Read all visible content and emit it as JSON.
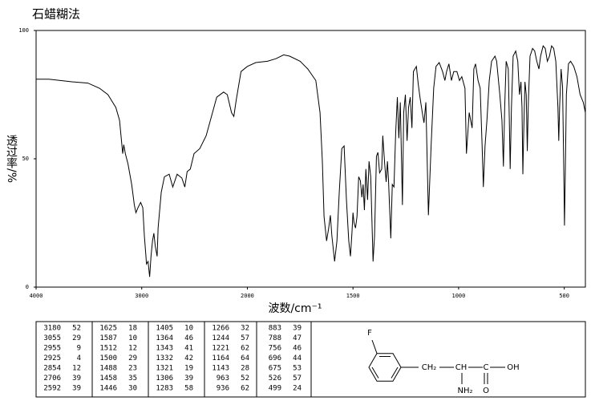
{
  "chart_data": {
    "type": "line",
    "title": "石蜡糊法",
    "x_label": "波数/cm⁻¹",
    "y_label": "透过率/%",
    "xlim": [
      4000,
      400
    ],
    "x_scale_break": 2000,
    "xticks": [
      4000,
      3000,
      2000,
      1500,
      1000,
      500
    ],
    "ylim": [
      0,
      100
    ],
    "yticks": [
      0,
      50,
      100
    ],
    "color": "#000000",
    "x": [
      4000,
      3880,
      3660,
      3510,
      3400,
      3320,
      3245,
      3210,
      3180,
      3170,
      3155,
      3130,
      3095,
      3070,
      3055,
      3035,
      3010,
      2990,
      2975,
      2960,
      2955,
      2940,
      2925,
      2912,
      2898,
      2885,
      2872,
      2854,
      2845,
      2815,
      2785,
      2740,
      2706,
      2665,
      2620,
      2592,
      2570,
      2540,
      2505,
      2450,
      2390,
      2340,
      2290,
      2225,
      2190,
      2150,
      2128,
      2105,
      2060,
      2000,
      1960,
      1905,
      1865,
      1828,
      1800,
      1750,
      1714,
      1676,
      1656,
      1645,
      1637,
      1625,
      1615,
      1607,
      1600,
      1587,
      1576,
      1565,
      1553,
      1542,
      1531,
      1520,
      1512,
      1505,
      1500,
      1495,
      1488,
      1481,
      1473,
      1465,
      1458,
      1452,
      1446,
      1439,
      1431,
      1424,
      1416,
      1405,
      1398,
      1389,
      1382,
      1374,
      1364,
      1359,
      1350,
      1343,
      1337,
      1332,
      1321,
      1314,
      1306,
      1298,
      1290,
      1283,
      1276,
      1266,
      1260,
      1252,
      1244,
      1237,
      1229,
      1221,
      1214,
      1200,
      1191,
      1183,
      1172,
      1164,
      1155,
      1143,
      1130,
      1118,
      1107,
      1092,
      1076,
      1065,
      1057,
      1046,
      1034,
      1023,
      1008,
      996,
      985,
      970,
      963,
      950,
      936,
      928,
      920,
      908,
      898,
      889,
      883,
      875,
      866,
      855,
      844,
      828,
      820,
      805,
      795,
      788,
      782,
      775,
      765,
      760,
      756,
      750,
      742,
      730,
      720,
      712,
      705,
      700,
      696,
      692,
      686,
      680,
      675,
      670,
      662,
      650,
      640,
      630,
      620,
      612,
      600,
      590,
      580,
      570,
      560,
      550,
      540,
      530,
      526,
      522,
      515,
      508,
      503,
      499,
      495,
      490,
      480,
      470,
      455,
      440,
      425,
      410,
      400
    ],
    "values": [
      81,
      81,
      80,
      79.5,
      77.5,
      75,
      70,
      65,
      52,
      55.5,
      52,
      48,
      40,
      32,
      29,
      31,
      33,
      31,
      20,
      12,
      9,
      10,
      4,
      12,
      18,
      21,
      16,
      12,
      23,
      37,
      43,
      44,
      39,
      44,
      42.5,
      39,
      45,
      46,
      52,
      54,
      59,
      66.5,
      74,
      76,
      75,
      68,
      66.5,
      73,
      84,
      86,
      87.5,
      88,
      89,
      90.5,
      90,
      88,
      85,
      80.5,
      68,
      49,
      27.5,
      18,
      23,
      28,
      20,
      10,
      18,
      37,
      54,
      55,
      34,
      18,
      12,
      21,
      29,
      25,
      23,
      27.5,
      43,
      41.5,
      35,
      40,
      30,
      46,
      34,
      49,
      43,
      10,
      20,
      51,
      52.5,
      44.5,
      46,
      59,
      48,
      41,
      49,
      42,
      19,
      40,
      39,
      60,
      74,
      58,
      72,
      32,
      68,
      75,
      57,
      70,
      74,
      62,
      84,
      86,
      79,
      74,
      68,
      64,
      72,
      28,
      55.5,
      77.5,
      86,
      87.5,
      84,
      80.5,
      84,
      87,
      80.5,
      84,
      84,
      80.5,
      82,
      77.5,
      52,
      68,
      62,
      85,
      87,
      80.5,
      77.5,
      55.5,
      39,
      55,
      65,
      80.5,
      88,
      90,
      88,
      75,
      65,
      47,
      70,
      88,
      85,
      65,
      46,
      70,
      90,
      92,
      88,
      75,
      80,
      70,
      44,
      60,
      80,
      75,
      53,
      72,
      90,
      93,
      92,
      88,
      85,
      90,
      94,
      93,
      88,
      90,
      94,
      93,
      88,
      70,
      57,
      70,
      85,
      78,
      50,
      24,
      45,
      75,
      87,
      88,
      86,
      82,
      75,
      72,
      68
    ]
  },
  "peak_table": [
    [
      [
        3180,
        52
      ],
      [
        3055,
        29
      ],
      [
        2955,
        9
      ],
      [
        2925,
        4
      ],
      [
        2854,
        12
      ],
      [
        2706,
        39
      ],
      [
        2592,
        39
      ]
    ],
    [
      [
        1625,
        18
      ],
      [
        1587,
        10
      ],
      [
        1512,
        12
      ],
      [
        1500,
        29
      ],
      [
        1488,
        23
      ],
      [
        1458,
        35
      ],
      [
        1446,
        30
      ]
    ],
    [
      [
        1405,
        10
      ],
      [
        1364,
        46
      ],
      [
        1343,
        41
      ],
      [
        1332,
        42
      ],
      [
        1321,
        19
      ],
      [
        1306,
        39
      ],
      [
        1283,
        58
      ]
    ],
    [
      [
        1266,
        32
      ],
      [
        1244,
        57
      ],
      [
        1221,
        62
      ],
      [
        1164,
        64
      ],
      [
        1143,
        28
      ],
      [
        963,
        52
      ],
      [
        936,
        62
      ]
    ],
    [
      [
        883,
        39
      ],
      [
        788,
        47
      ],
      [
        756,
        46
      ],
      [
        696,
        44
      ],
      [
        675,
        53
      ],
      [
        526,
        57
      ],
      [
        499,
        24
      ]
    ]
  ],
  "structure": {
    "labels": [
      "F",
      "CH₂",
      "CH",
      "C",
      "OH",
      "NH₂",
      "O"
    ]
  }
}
